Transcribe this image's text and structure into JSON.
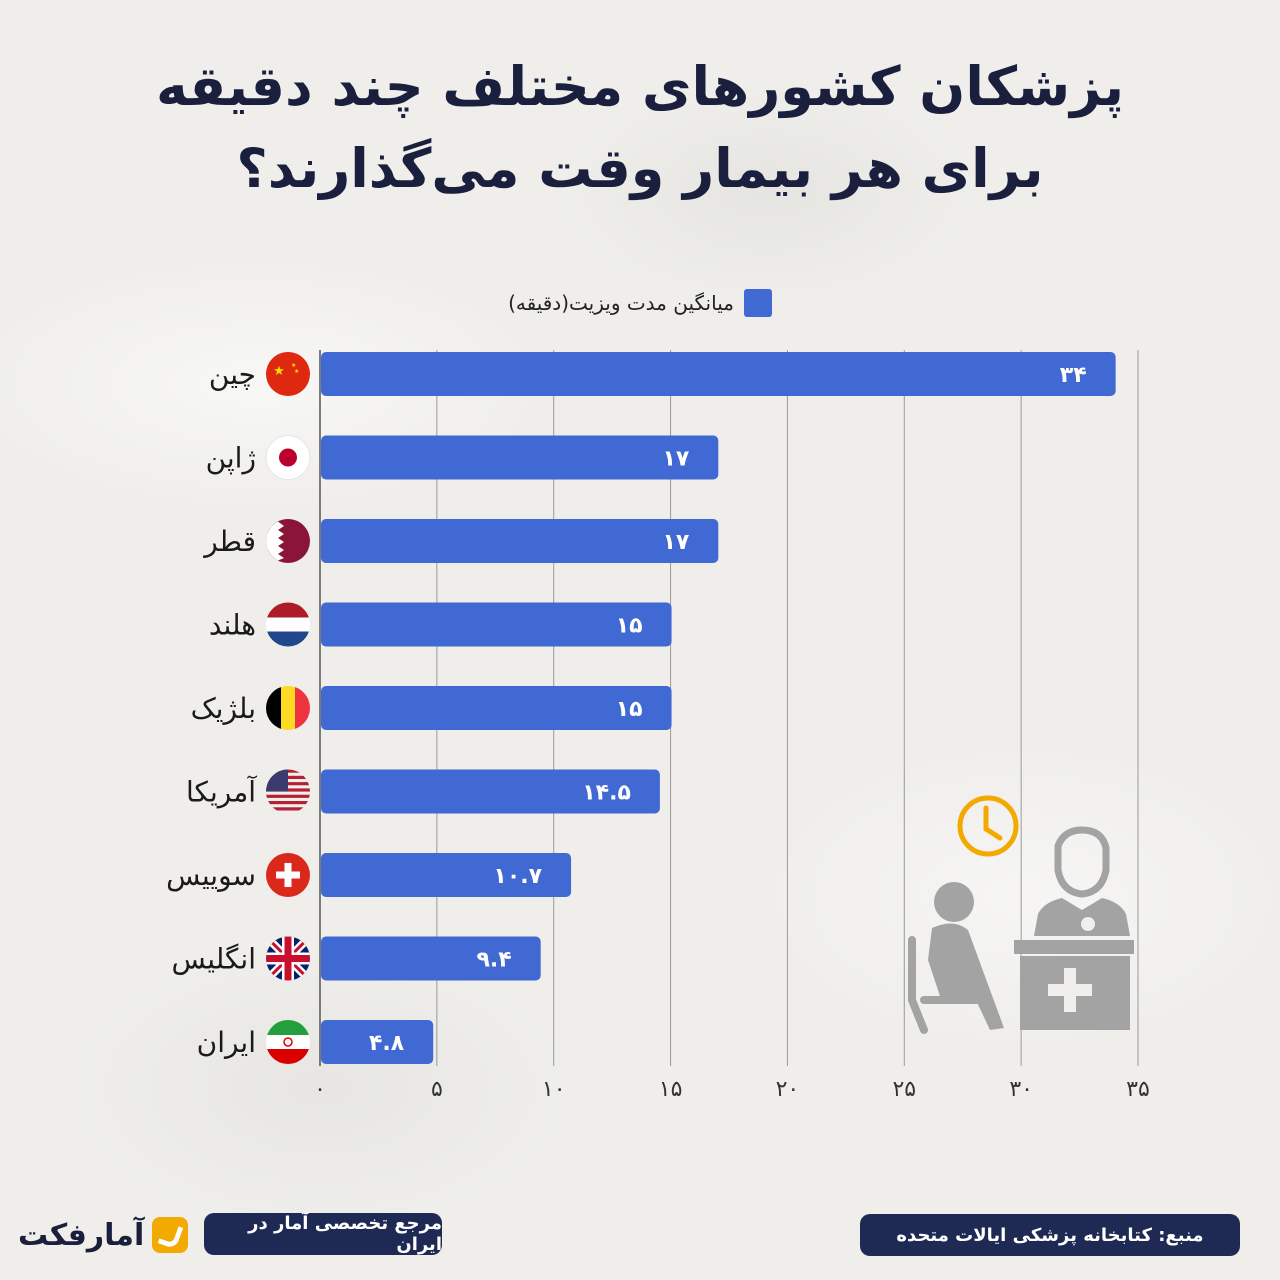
{
  "title_line1": "پزشکان کشورهای مختلف چند دقیقه",
  "title_line2": "برای هر بیمار وقت می‌گذارند؟",
  "tagline": "مرجع تخصصی آمار در ایران",
  "source": "منبع: کتابخانه پزشکی ایالات متحده",
  "logo_text": "آمارفکت",
  "colors": {
    "bar": "#4169d3",
    "title": "#1a1f3d",
    "pill": "#1f2a54",
    "accent": "#f2a900",
    "illustration": "#a3a3a3"
  },
  "chart_data": {
    "type": "bar",
    "orientation": "horizontal",
    "legend": "میانگین مدت ویزیت(دقیقه)",
    "legend_position": "top",
    "grid": true,
    "xlim": [
      0,
      35
    ],
    "ticks": [
      0,
      5,
      10,
      15,
      20,
      25,
      30,
      35
    ],
    "tick_labels": [
      "۰",
      "۵",
      "۱۰",
      "۱۵",
      "۲۰",
      "۲۵",
      "۳۰",
      "۳۵"
    ],
    "categories": [
      "چین",
      "ژاپن",
      "قطر",
      "هلند",
      "بلژیک",
      "آمریکا",
      "سوییس",
      "انگلیس",
      "ایران"
    ],
    "flags": [
      "china-flag-icon",
      "japan-flag-icon",
      "qatar-flag-icon",
      "netherlands-flag-icon",
      "belgium-flag-icon",
      "usa-flag-icon",
      "switzerland-flag-icon",
      "uk-flag-icon",
      "iran-flag-icon"
    ],
    "values": [
      34,
      17,
      17,
      15,
      15,
      14.5,
      10.7,
      9.4,
      4.8
    ],
    "value_labels": [
      "۳۴",
      "۱۷",
      "۱۷",
      "۱۵",
      "۱۵",
      "۱۴.۵",
      "۱۰.۷",
      "۹.۴",
      "۴.۸"
    ]
  }
}
